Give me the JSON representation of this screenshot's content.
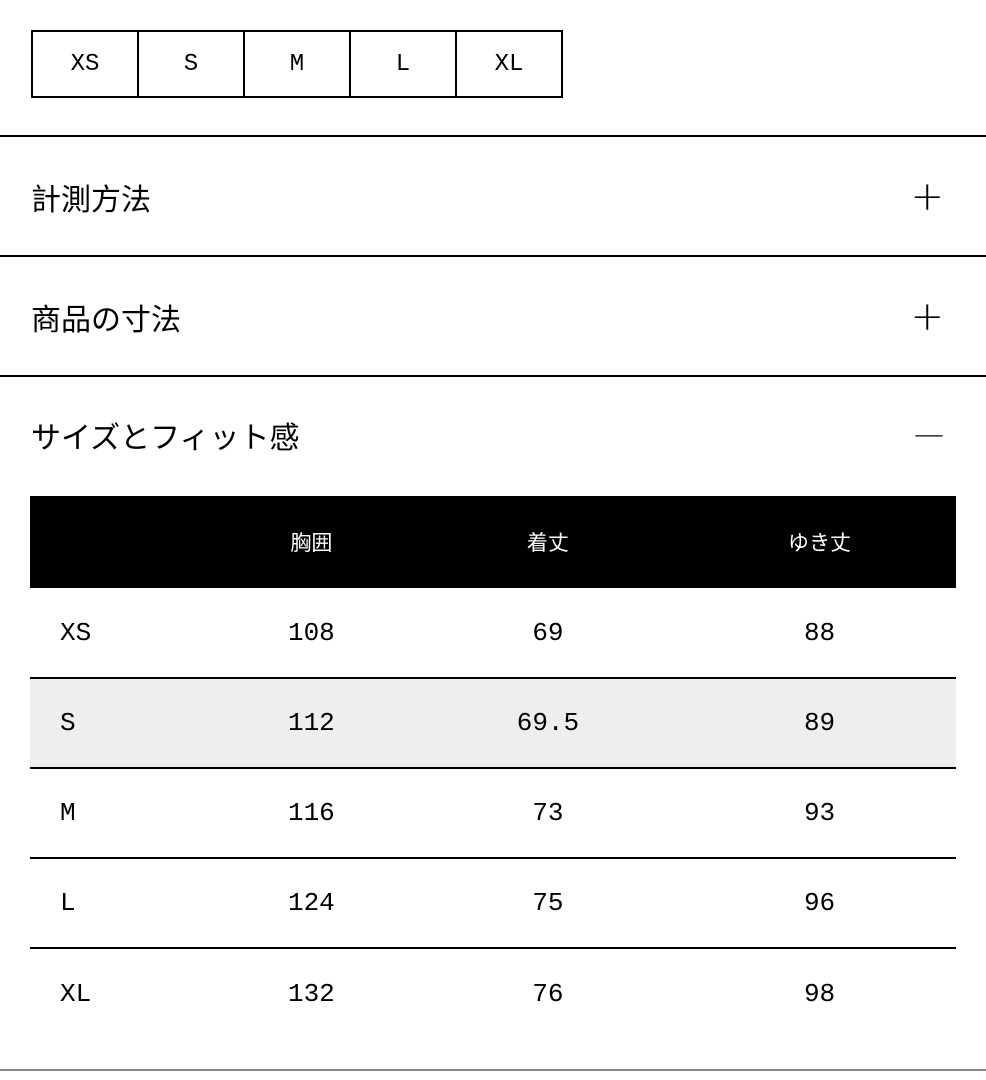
{
  "size_selector": [
    "XS",
    "S",
    "M",
    "L",
    "XL"
  ],
  "accordions": [
    {
      "title": "計測方法",
      "icon": "plus-icon",
      "symbol": "+"
    },
    {
      "title": "商品の寸法",
      "icon": "plus-icon",
      "symbol": "+"
    },
    {
      "title": "サイズとフィット感",
      "icon": "minus-icon",
      "symbol": "—"
    }
  ],
  "table": {
    "headers": [
      "",
      "胸囲",
      "着丈",
      "ゆき丈"
    ],
    "rows": [
      [
        "XS",
        "108",
        "69",
        "88"
      ],
      [
        "S",
        "112",
        "69.5",
        "89"
      ],
      [
        "M",
        "116",
        "73",
        "93"
      ],
      [
        "L",
        "124",
        "75",
        "96"
      ],
      [
        "XL",
        "132",
        "76",
        "98"
      ]
    ],
    "highlight_row_color": "#efeeec"
  }
}
